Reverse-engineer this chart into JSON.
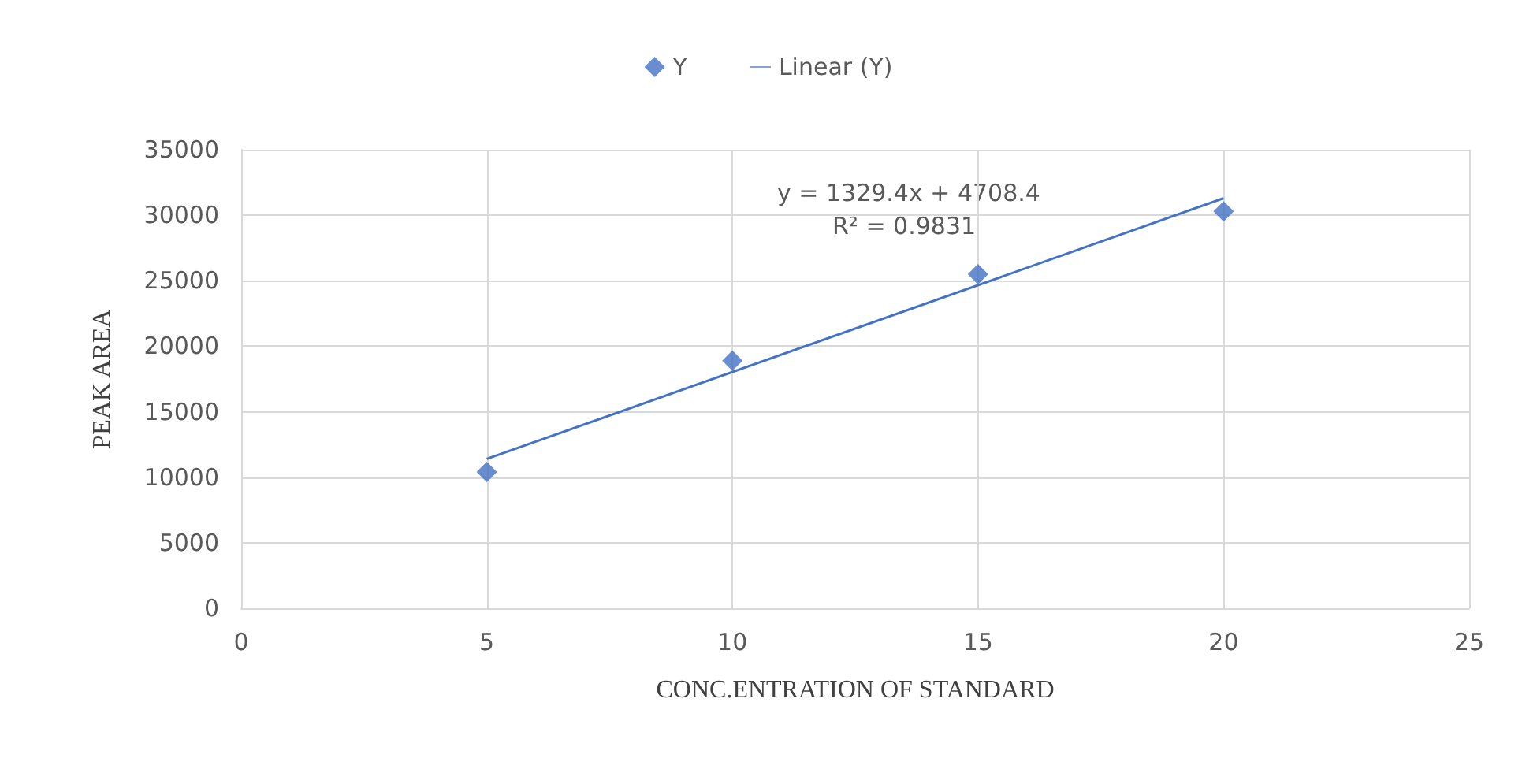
{
  "chart_data": {
    "type": "scatter",
    "xlabel": "CONC.ENTRATION OF STANDARD",
    "ylabel": "PEAK AREA",
    "annotations": [
      "y = 1329.4x + 4708.4",
      "R² = 0.9831"
    ],
    "series": [
      {
        "name": "Y",
        "type": "scatter",
        "color": "#4472c4",
        "marker": "diamond",
        "x": [
          5,
          10,
          15,
          20
        ],
        "values": [
          10400,
          18900,
          25500,
          30300
        ]
      },
      {
        "name": "Linear (Y)",
        "type": "line",
        "color": "#4472c4",
        "marker": "none",
        "line_style": "solid",
        "x": [
          5,
          20
        ],
        "values": [
          11400,
          31300
        ]
      }
    ],
    "xlim": [
      0,
      25
    ],
    "xticks": [
      0,
      5,
      10,
      15,
      20,
      25
    ],
    "ylim": [
      0,
      35000
    ],
    "yticks": [
      0,
      5000,
      10000,
      15000,
      20000,
      25000,
      30000,
      35000
    ],
    "grid": true,
    "legend": "top"
  }
}
